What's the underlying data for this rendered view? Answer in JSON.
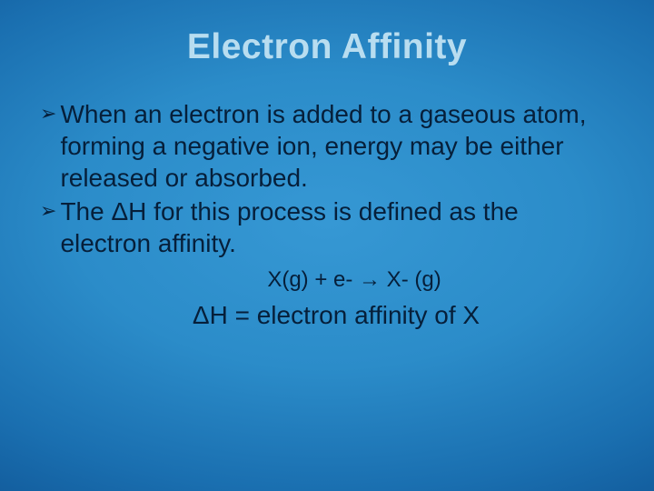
{
  "background": {
    "gradient_center": "#3698d4",
    "gradient_mid": "#1a6fb0",
    "gradient_edge": "#052e5e"
  },
  "title": {
    "text": "Electron Affinity",
    "color": "#b8ddf0",
    "fontsize_pt": 29,
    "font_weight": "bold"
  },
  "body": {
    "text_color": "#061f3a",
    "fontsize_pt": 21,
    "bullet_marker": "➢",
    "bullets": [
      "When an electron is added to a gaseous atom, forming a negative ion,  energy may be either released or absorbed.",
      "The ΔH for this process is defined as the electron affinity."
    ]
  },
  "equation": {
    "line1": "X(g) + e- → X- (g)",
    "line1_fontsize_pt": 18,
    "line2": "ΔH = electron affinity of X",
    "line2_fontsize_pt": 21
  }
}
